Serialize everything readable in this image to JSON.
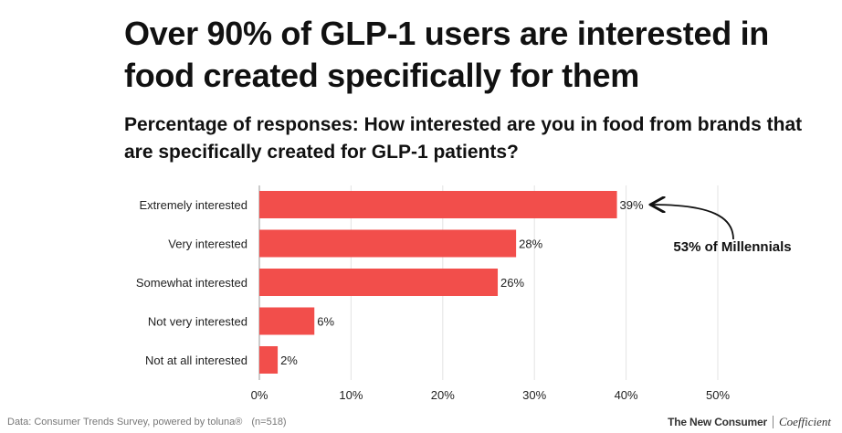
{
  "title": "Over 90% of GLP-1 users are interested in food created specifically for them",
  "subtitle": "Percentage of responses: How interested are you in food from brands that are specifically created for GLP-1 patients?",
  "footer": {
    "source": "Data: Consumer Trends Survey, powered by toluna®",
    "sample": "(n=518)",
    "brand_left": "The New Consumer",
    "brand_right": "Coefficient"
  },
  "chart_data": {
    "type": "bar",
    "orientation": "horizontal",
    "categories": [
      "Extremely interested",
      "Very interested",
      "Somewhat interested",
      "Not very interested",
      "Not at all interested"
    ],
    "values": [
      39,
      28,
      26,
      6,
      2
    ],
    "value_labels": [
      "39%",
      "28%",
      "26%",
      "6%",
      "2%"
    ],
    "xlim": [
      0,
      50
    ],
    "ticks": [
      0,
      10,
      20,
      30,
      40,
      50
    ],
    "tick_labels": [
      "0%",
      "10%",
      "20%",
      "30%",
      "40%",
      "50%"
    ],
    "grid": true,
    "bar_color": "#F24E4B",
    "annotation": {
      "text": "53% of Millennials",
      "target_category": "Extremely interested"
    }
  }
}
